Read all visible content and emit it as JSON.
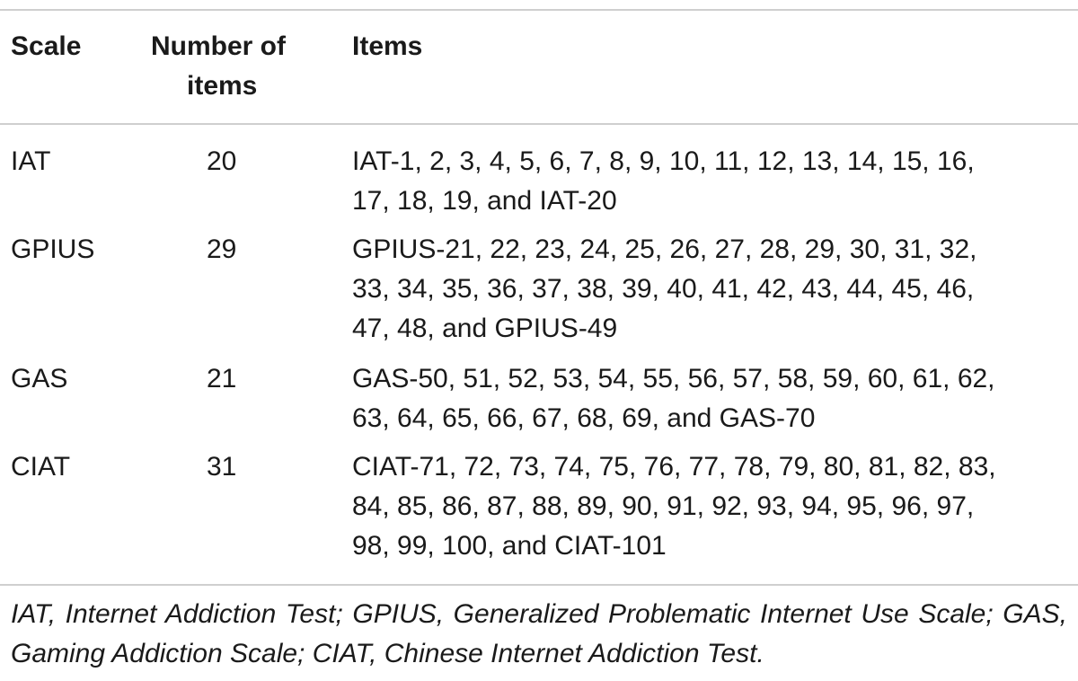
{
  "table": {
    "headers": {
      "scale": "Scale",
      "number_of_items_line1": "Number of",
      "number_of_items_line2": "items",
      "items": "Items"
    },
    "rows": [
      {
        "scale": "IAT",
        "number": "20",
        "items_lines": [
          "IAT-1, 2, 3, 4, 5, 6, 7, 8, 9, 10, 11, 12, 13, 14, 15, 16,",
          "17, 18, 19, and IAT-20"
        ]
      },
      {
        "scale": "GPIUS",
        "number": "29",
        "items_lines": [
          "GPIUS-21, 22, 23, 24, 25, 26, 27, 28, 29, 30, 31, 32,",
          "33, 34, 35, 36, 37, 38, 39, 40, 41, 42, 43, 44, 45, 46,",
          "47, 48, and GPIUS-49"
        ]
      },
      {
        "scale": "GAS",
        "number": "21",
        "items_lines": [
          "GAS-50, 51, 52, 53, 54, 55, 56, 57, 58, 59, 60, 61, 62,",
          "63, 64, 65, 66, 67, 68, 69, and GAS-70"
        ]
      },
      {
        "scale": "CIAT",
        "number": "31",
        "items_lines": [
          "CIAT-71, 72, 73, 74, 75, 76, 77, 78, 79, 80, 81, 82, 83,",
          "84, 85, 86, 87, 88, 89, 90, 91, 92, 93, 94, 95, 96, 97,",
          "98, 99, 100, and CIAT-101"
        ]
      }
    ],
    "footnote": "IAT, Internet Addiction Test; GPIUS, Generalized Problematic Internet Use Scale; GAS, Gaming Addiction Scale; CIAT, Chinese Internet Addiction Test."
  }
}
